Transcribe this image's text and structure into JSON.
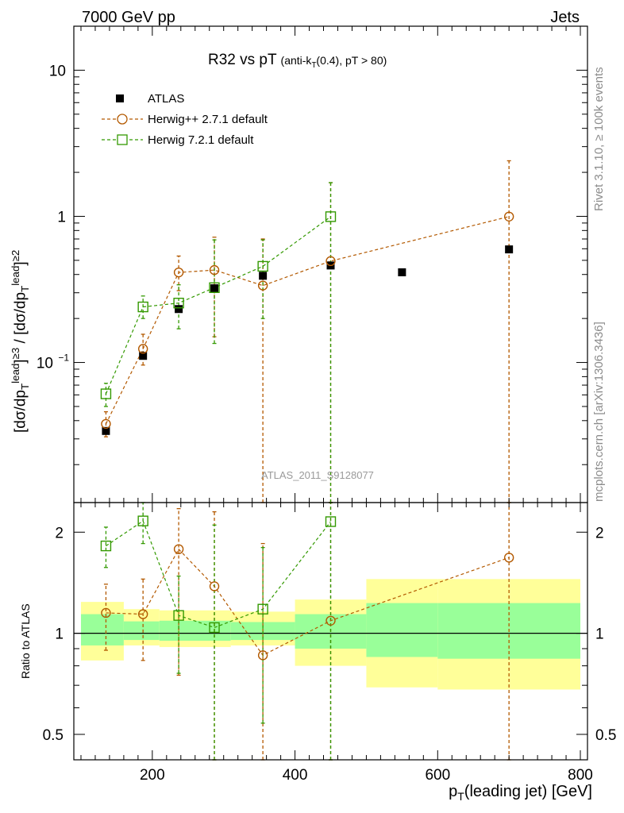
{
  "header": {
    "left": "7000 GeV pp",
    "right": "Jets"
  },
  "side_text": {
    "top": "Rivet 3.1.10, ≥ 100k events",
    "bottom": "mcplots.cern.ch [arXiv:1306.3436]"
  },
  "watermark": "ATLAS_2011_S9128077",
  "colors": {
    "atlas": "#000000",
    "herwigpp": "#b35900",
    "herwig7": "#339900",
    "band_yellow": "#ffff99",
    "band_green": "#99ff99"
  },
  "chart_data": [
    {
      "type": "scatter",
      "panel": "main",
      "title": "R32 vs pT",
      "title_suffix": "(anti-k_T(0.4), pT > 80)",
      "ylabel": "[dσ/dp_T^lead]^{≥3} / [dσ/dp_T^lead]^{≥2}",
      "xlabel": "p_T(leading jet) [GeV]",
      "xlim": [
        90,
        810
      ],
      "ylim": [
        0.011,
        20
      ],
      "yscale": "log",
      "x_ticks": [
        "200",
        "400",
        "600",
        "800"
      ],
      "y_ticks": [
        "10^-1",
        "1",
        "10"
      ],
      "legend_position": "top-left",
      "series": [
        {
          "name": "ATLAS",
          "marker": "square-filled",
          "x": [
            135,
            187,
            237,
            287,
            355,
            450,
            550,
            700
          ],
          "y": [
            0.034,
            0.111,
            0.232,
            0.322,
            0.392,
            0.461,
            0.414,
            0.594
          ]
        },
        {
          "name": "Herwig++ 2.7.1 default",
          "marker": "circle-open",
          "line": "dashed",
          "x": [
            135,
            187,
            237,
            287,
            355,
            450,
            700
          ],
          "y": [
            0.038,
            0.124,
            0.413,
            0.429,
            0.336,
            0.494,
            0.996
          ],
          "yerr_low": [
            0.031,
            0.096,
            0.31,
            0.15,
            0.001,
            0.001,
            0.001
          ],
          "yerr_high": [
            0.046,
            0.156,
            0.535,
            0.72,
            0.7,
            1.7,
            2.4
          ]
        },
        {
          "name": "Herwig 7.2.1 default",
          "marker": "square-open",
          "line": "dashed",
          "x": [
            135,
            187,
            237,
            287,
            355,
            450
          ],
          "y": [
            0.061,
            0.24,
            0.255,
            0.325,
            0.455,
            0.995
          ],
          "yerr_low": [
            0.05,
            0.2,
            0.17,
            0.135,
            0.2,
            0.001
          ],
          "yerr_high": [
            0.072,
            0.285,
            0.34,
            0.69,
            0.69,
            1.7
          ]
        }
      ]
    },
    {
      "type": "line",
      "panel": "ratio",
      "ylabel": "Ratio to ATLAS",
      "yscale": "log",
      "ylim": [
        0.42,
        2.45
      ],
      "y_ticks": [
        "0.5",
        "1",
        "2"
      ],
      "reference": 1,
      "bands": {
        "bin_edges": [
          100,
          160,
          210,
          310,
          400,
          500,
          600,
          800
        ],
        "yellow_low": [
          0.83,
          0.92,
          0.91,
          0.92,
          0.8,
          0.69,
          0.68
        ],
        "yellow_high": [
          1.24,
          1.18,
          1.17,
          1.16,
          1.26,
          1.45,
          1.45
        ],
        "green_low": [
          0.92,
          0.955,
          0.95,
          0.955,
          0.9,
          0.85,
          0.84
        ],
        "green_high": [
          1.14,
          1.085,
          1.09,
          1.08,
          1.14,
          1.23,
          1.23
        ]
      },
      "series": [
        {
          "name": "Herwig++ 2.7.1 default",
          "x": [
            135,
            187,
            237,
            287,
            355,
            450,
            700
          ],
          "y": [
            1.15,
            1.14,
            1.78,
            1.38,
            0.86,
            1.09,
            1.68
          ],
          "yerr_low": [
            0.89,
            0.83,
            0.75,
            0.4,
            0.01,
            0.01,
            0.01
          ],
          "yerr_high": [
            1.4,
            1.45,
            2.35,
            2.3,
            1.85,
            3.5,
            4
          ]
        },
        {
          "name": "Herwig 7.2.1 default",
          "x": [
            135,
            187,
            237,
            287,
            355,
            450
          ],
          "y": [
            1.82,
            2.16,
            1.13,
            1.04,
            1.18,
            2.15
          ],
          "yerr_low": [
            1.57,
            1.85,
            0.76,
            0.37,
            0.54,
            0.01
          ],
          "yerr_high": [
            2.07,
            2.46,
            1.48,
            2.1,
            1.8,
            3.5
          ]
        }
      ]
    }
  ]
}
